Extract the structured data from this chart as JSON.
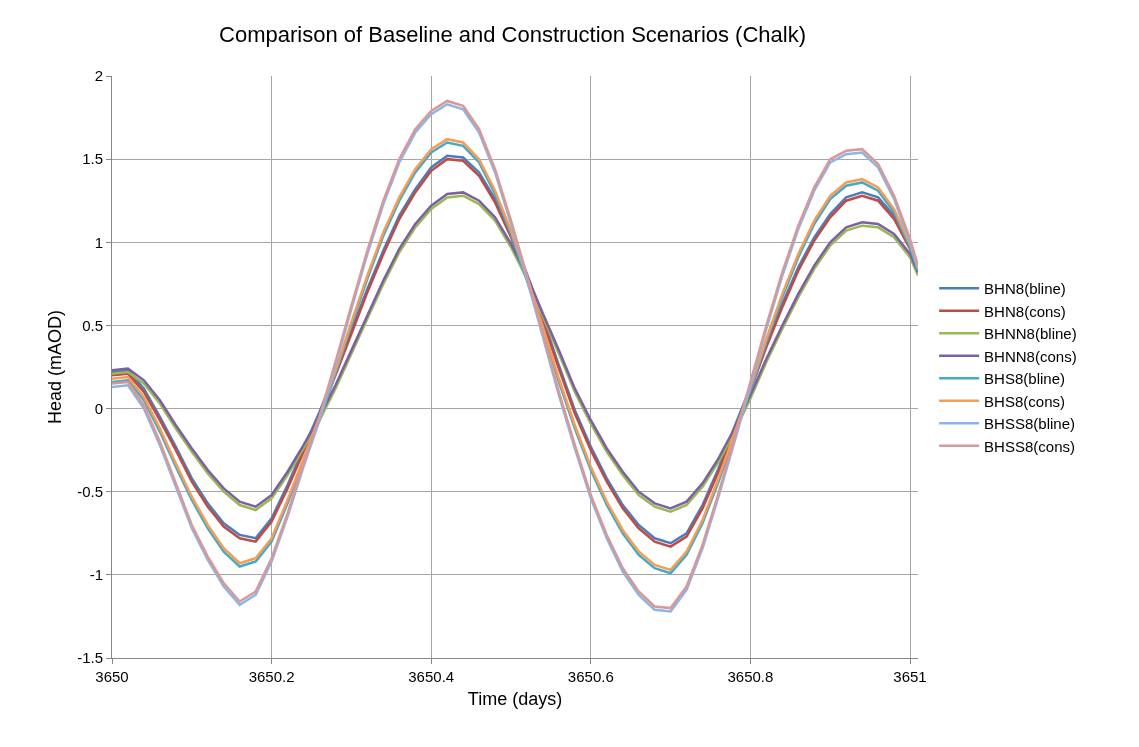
{
  "chart_data": {
    "type": "line",
    "title": "Comparison of Baseline and Construction Scenarios (Chalk)",
    "xlabel": "Time (days)",
    "ylabel": "Head (mAOD)",
    "x": [
      3650.0,
      3650.02,
      3650.04,
      3650.06,
      3650.08,
      3650.1,
      3650.12,
      3650.14,
      3650.16,
      3650.18,
      3650.2,
      3650.22,
      3650.24,
      3650.26,
      3650.28,
      3650.3,
      3650.32,
      3650.34,
      3650.36,
      3650.38,
      3650.4,
      3650.42,
      3650.44,
      3650.46,
      3650.48,
      3650.5,
      3650.52,
      3650.54,
      3650.56,
      3650.58,
      3650.6,
      3650.62,
      3650.64,
      3650.66,
      3650.68,
      3650.7,
      3650.72,
      3650.74,
      3650.76,
      3650.78,
      3650.8,
      3650.82,
      3650.84,
      3650.86,
      3650.88,
      3650.9,
      3650.92,
      3650.94,
      3650.96,
      3650.98,
      3651.0,
      3651.01
    ],
    "series": [
      {
        "name": "BHN8(bline)",
        "color": "#4a7ebb",
        "values": [
          0.22,
          0.23,
          0.12,
          -0.05,
          -0.23,
          -0.42,
          -0.57,
          -0.69,
          -0.76,
          -0.78,
          -0.66,
          -0.46,
          -0.24,
          -0.02,
          0.22,
          0.47,
          0.72,
          0.95,
          1.16,
          1.32,
          1.45,
          1.52,
          1.51,
          1.42,
          1.26,
          1.05,
          0.81,
          0.54,
          0.26,
          -0.01,
          -0.23,
          -0.42,
          -0.58,
          -0.7,
          -0.78,
          -0.81,
          -0.75,
          -0.58,
          -0.36,
          -0.11,
          0.13,
          0.39,
          0.63,
          0.85,
          1.03,
          1.17,
          1.27,
          1.3,
          1.27,
          1.16,
          0.98,
          0.86
        ]
      },
      {
        "name": "BHN8(cons)",
        "color": "#be4b48",
        "values": [
          0.2,
          0.21,
          0.1,
          -0.07,
          -0.25,
          -0.44,
          -0.59,
          -0.71,
          -0.78,
          -0.8,
          -0.68,
          -0.48,
          -0.26,
          -0.04,
          0.2,
          0.45,
          0.7,
          0.93,
          1.14,
          1.3,
          1.43,
          1.5,
          1.49,
          1.4,
          1.24,
          1.03,
          0.79,
          0.52,
          0.24,
          -0.03,
          -0.25,
          -0.44,
          -0.6,
          -0.72,
          -0.8,
          -0.83,
          -0.77,
          -0.6,
          -0.38,
          -0.13,
          0.11,
          0.37,
          0.61,
          0.83,
          1.01,
          1.15,
          1.25,
          1.28,
          1.25,
          1.14,
          0.96,
          0.84
        ]
      },
      {
        "name": "BHNN8(bline)",
        "color": "#98b954",
        "values": [
          0.21,
          0.22,
          0.15,
          0.03,
          -0.12,
          -0.26,
          -0.39,
          -0.5,
          -0.58,
          -0.61,
          -0.54,
          -0.4,
          -0.24,
          -0.07,
          0.12,
          0.33,
          0.54,
          0.75,
          0.94,
          1.09,
          1.2,
          1.27,
          1.28,
          1.23,
          1.13,
          0.97,
          0.78,
          0.55,
          0.33,
          0.1,
          -0.09,
          -0.26,
          -0.4,
          -0.52,
          -0.59,
          -0.62,
          -0.58,
          -0.47,
          -0.32,
          -0.14,
          0.06,
          0.28,
          0.48,
          0.67,
          0.84,
          0.98,
          1.07,
          1.1,
          1.09,
          1.03,
          0.91,
          0.8
        ]
      },
      {
        "name": "BHNN8(cons)",
        "color": "#7d60a0",
        "values": [
          0.23,
          0.24,
          0.17,
          0.05,
          -0.1,
          -0.24,
          -0.37,
          -0.48,
          -0.56,
          -0.59,
          -0.52,
          -0.38,
          -0.22,
          -0.05,
          0.14,
          0.35,
          0.56,
          0.77,
          0.96,
          1.11,
          1.22,
          1.29,
          1.3,
          1.25,
          1.15,
          0.99,
          0.8,
          0.57,
          0.35,
          0.12,
          -0.07,
          -0.24,
          -0.38,
          -0.5,
          -0.57,
          -0.6,
          -0.56,
          -0.45,
          -0.3,
          -0.12,
          0.08,
          0.3,
          0.5,
          0.69,
          0.86,
          1.0,
          1.09,
          1.12,
          1.11,
          1.05,
          0.93,
          0.82
        ]
      },
      {
        "name": "BHS8(bline)",
        "color": "#46aac5",
        "values": [
          0.16,
          0.17,
          0.05,
          -0.14,
          -0.35,
          -0.55,
          -0.72,
          -0.86,
          -0.95,
          -0.92,
          -0.8,
          -0.57,
          -0.32,
          -0.07,
          0.21,
          0.5,
          0.78,
          1.04,
          1.25,
          1.42,
          1.54,
          1.6,
          1.58,
          1.48,
          1.29,
          1.05,
          0.77,
          0.47,
          0.16,
          -0.12,
          -0.37,
          -0.58,
          -0.75,
          -0.88,
          -0.96,
          -0.99,
          -0.88,
          -0.69,
          -0.44,
          -0.17,
          0.11,
          0.4,
          0.67,
          0.91,
          1.11,
          1.26,
          1.34,
          1.36,
          1.31,
          1.18,
          0.97,
          0.83
        ]
      },
      {
        "name": "BHS8(cons)",
        "color": "#f59d56",
        "values": [
          0.18,
          0.19,
          0.07,
          -0.12,
          -0.33,
          -0.53,
          -0.7,
          -0.84,
          -0.93,
          -0.9,
          -0.78,
          -0.55,
          -0.3,
          -0.05,
          0.23,
          0.52,
          0.8,
          1.06,
          1.27,
          1.44,
          1.56,
          1.62,
          1.6,
          1.5,
          1.31,
          1.07,
          0.79,
          0.49,
          0.18,
          -0.1,
          -0.35,
          -0.56,
          -0.73,
          -0.86,
          -0.94,
          -0.97,
          -0.86,
          -0.67,
          -0.42,
          -0.15,
          0.13,
          0.42,
          0.69,
          0.93,
          1.13,
          1.28,
          1.36,
          1.38,
          1.33,
          1.2,
          0.99,
          0.85
        ]
      },
      {
        "name": "BHSS8(bline)",
        "color": "#8eb4e3",
        "values": [
          0.13,
          0.14,
          0.0,
          -0.22,
          -0.47,
          -0.72,
          -0.91,
          -1.07,
          -1.18,
          -1.12,
          -0.92,
          -0.65,
          -0.35,
          -0.07,
          0.26,
          0.6,
          0.93,
          1.23,
          1.48,
          1.66,
          1.77,
          1.83,
          1.8,
          1.66,
          1.42,
          1.11,
          0.78,
          0.43,
          0.08,
          -0.24,
          -0.54,
          -0.78,
          -0.98,
          -1.12,
          -1.21,
          -1.22,
          -1.09,
          -0.84,
          -0.53,
          -0.2,
          0.14,
          0.48,
          0.8,
          1.08,
          1.31,
          1.48,
          1.53,
          1.54,
          1.45,
          1.26,
          1.0,
          0.84
        ]
      },
      {
        "name": "BHSS8(cons)",
        "color": "#d7989a",
        "values": [
          0.15,
          0.16,
          0.02,
          -0.2,
          -0.45,
          -0.7,
          -0.89,
          -1.05,
          -1.16,
          -1.1,
          -0.9,
          -0.63,
          -0.33,
          -0.05,
          0.28,
          0.62,
          0.95,
          1.25,
          1.5,
          1.68,
          1.79,
          1.85,
          1.82,
          1.68,
          1.44,
          1.13,
          0.8,
          0.45,
          0.1,
          -0.22,
          -0.52,
          -0.76,
          -0.96,
          -1.1,
          -1.19,
          -1.2,
          -1.07,
          -0.82,
          -0.51,
          -0.18,
          0.16,
          0.5,
          0.82,
          1.1,
          1.33,
          1.5,
          1.55,
          1.56,
          1.47,
          1.28,
          1.02,
          0.86
        ]
      }
    ],
    "xlim": [
      3650,
      3651.01
    ],
    "xticks": [
      3650,
      3650.2,
      3650.4,
      3650.6,
      3650.8,
      3651
    ],
    "ylim": [
      -1.5,
      2
    ],
    "yticks": [
      -1.5,
      -1,
      -0.5,
      0,
      0.5,
      1,
      1.5,
      2
    ],
    "grid": true,
    "legend": "right",
    "marker": "none",
    "line_style": "solid"
  }
}
